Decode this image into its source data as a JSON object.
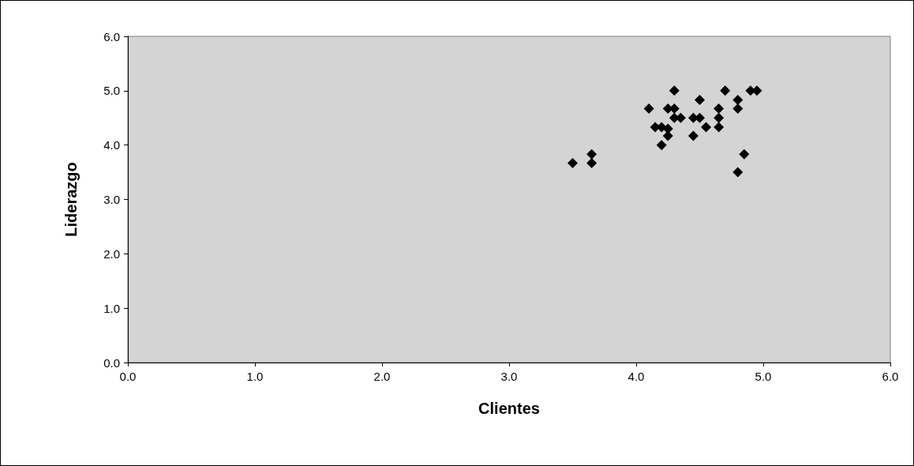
{
  "chart_data": {
    "type": "scatter",
    "xlabel": "Clientes",
    "ylabel": "Liderazgo",
    "x": [
      3.5,
      3.65,
      3.65,
      4.1,
      4.3,
      4.25,
      4.3,
      4.3,
      4.35,
      4.15,
      4.2,
      4.25,
      4.25,
      4.2,
      4.5,
      4.45,
      4.5,
      4.45,
      4.55,
      4.65,
      4.65,
      4.65,
      4.7,
      4.8,
      4.8,
      4.9,
      4.95,
      4.85,
      4.8
    ],
    "values": [
      3.67,
      3.83,
      3.67,
      4.67,
      5.0,
      4.67,
      4.67,
      4.5,
      4.5,
      4.33,
      4.33,
      4.3,
      4.17,
      4.0,
      4.83,
      4.5,
      4.5,
      4.17,
      4.33,
      4.67,
      4.5,
      4.33,
      5.0,
      4.83,
      4.67,
      5.0,
      5.0,
      3.83,
      3.5
    ],
    "color": "#000000",
    "marker": "diamond",
    "grid": false,
    "xlim": [
      0,
      6
    ],
    "xticks": [
      {
        "value": 0,
        "label": "0.0"
      },
      {
        "value": 1,
        "label": "1.0"
      },
      {
        "value": 2,
        "label": "2.0"
      },
      {
        "value": 3,
        "label": "3.0"
      },
      {
        "value": 4,
        "label": "4.0"
      },
      {
        "value": 5,
        "label": "5.0"
      },
      {
        "value": 6,
        "label": "6.0"
      }
    ],
    "ylim": [
      0,
      6
    ],
    "yticks": [
      {
        "value": 0,
        "label": "0.0"
      },
      {
        "value": 1,
        "label": "1.0"
      },
      {
        "value": 2,
        "label": "2.0"
      },
      {
        "value": 3,
        "label": "3.0"
      },
      {
        "value": 4,
        "label": "4.0"
      },
      {
        "value": 5,
        "label": "5.0"
      },
      {
        "value": 6,
        "label": "6.0"
      }
    ]
  }
}
